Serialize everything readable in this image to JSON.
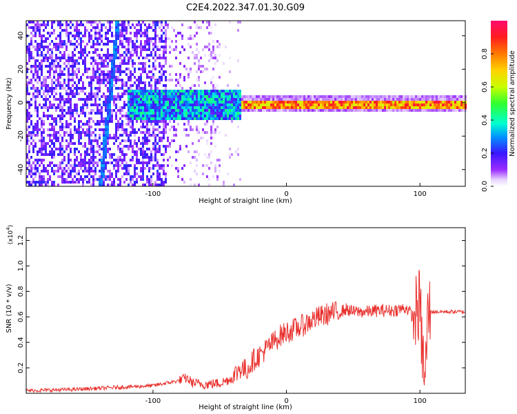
{
  "title": "C2E4.2022.347.01.30.G09",
  "chart_data": [
    {
      "type": "heatmap",
      "xlabel": "Height of straight line (km)",
      "ylabel": "Frequency (Hz)",
      "xlim": [
        -195,
        134
      ],
      "ylim": [
        -50,
        49
      ],
      "xticks": [
        -100,
        0,
        100
      ],
      "xtick_labels": [
        "-100",
        "0",
        "100"
      ],
      "yticks": [
        -40,
        -20,
        0,
        20,
        40
      ],
      "ytick_labels": [
        "-40",
        "-20",
        "0",
        "20",
        "40"
      ],
      "colorbar": {
        "label": "Normalized spectral amplitude",
        "range": [
          0,
          1
        ],
        "ticks": [
          0.0,
          0.2,
          0.4,
          0.6,
          0.8
        ],
        "tick_labels": [
          "0.0",
          "0.2",
          "0.4",
          "0.6",
          "0.8"
        ]
      },
      "features": {
        "carrier_line": {
          "x_start": -35,
          "x_end": 134,
          "frequency": 0,
          "amplitude": 0.85
        },
        "scattered_region": {
          "x_start": -195,
          "x_end": -35,
          "frequency_range": [
            -50,
            49
          ],
          "amplitude_range": [
            0.0,
            0.4
          ]
        },
        "diagonal_streak": {
          "x_at_top": -127,
          "x_at_bottom": -140
        }
      }
    },
    {
      "type": "line",
      "xlabel": "Height of straight line (km)",
      "ylabel": "SNR (10 * v/v)",
      "y_multiplier_label": "(x10",
      "y_multiplier_exp": "4",
      "y_multiplier_close": ")",
      "xlim": [
        -195,
        134
      ],
      "ylim": [
        0,
        1.3
      ],
      "xticks": [
        -100,
        0,
        100
      ],
      "xtick_labels": [
        "-100",
        "0",
        "100"
      ],
      "yticks": [
        0.2,
        0.4,
        0.6,
        0.8,
        1.0,
        1.2
      ],
      "ytick_labels": [
        "0.2",
        "0.4",
        "0.6",
        "0.8",
        "1.0",
        "1.2"
      ],
      "series": [
        {
          "color": "#e8312e",
          "x": [
            -195,
            -160,
            -140,
            -120,
            -100,
            -90,
            -80,
            -75,
            -70,
            -60,
            -50,
            -40,
            -35,
            -30,
            -25,
            -20,
            -15,
            -10,
            -5,
            0,
            10,
            20,
            30,
            40,
            45,
            50,
            60,
            70,
            80,
            90,
            95,
            100,
            102,
            104,
            106,
            110,
            120,
            134
          ],
          "y": [
            0.02,
            0.03,
            0.04,
            0.05,
            0.06,
            0.08,
            0.1,
            0.12,
            0.08,
            0.07,
            0.08,
            0.12,
            0.2,
            0.18,
            0.26,
            0.3,
            0.35,
            0.4,
            0.45,
            0.48,
            0.52,
            0.58,
            0.62,
            0.64,
            0.66,
            0.64,
            0.64,
            0.65,
            0.65,
            0.67,
            0.6,
            0.7,
            0.3,
            0.1,
            0.64,
            0.64,
            0.64,
            0.64
          ]
        }
      ]
    }
  ]
}
